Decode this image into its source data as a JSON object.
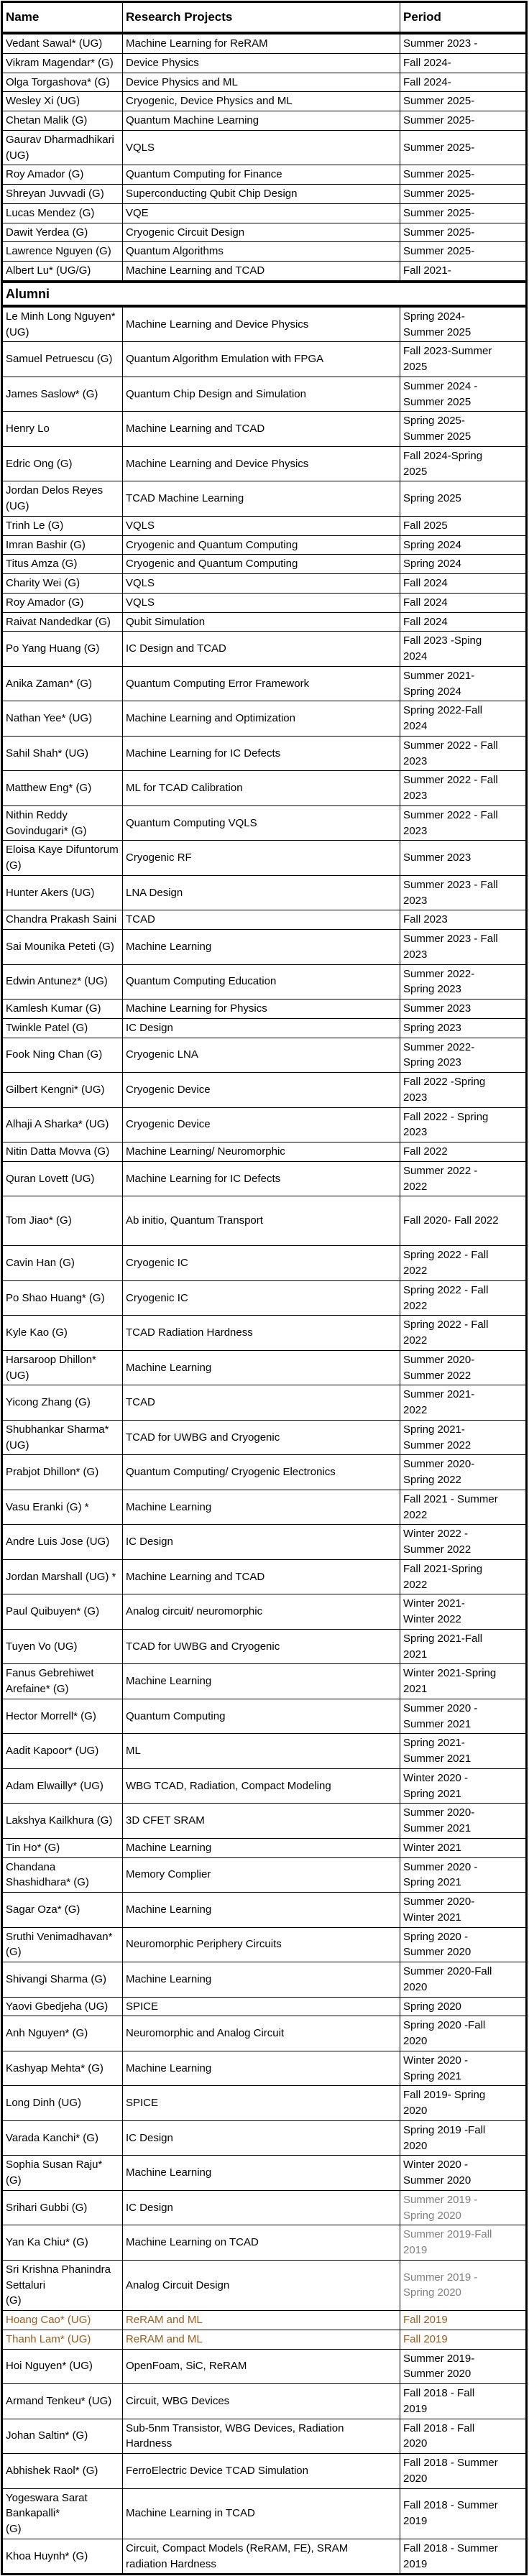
{
  "colors": {
    "text": "#000000",
    "gray_period": "#7f7f7f",
    "brown_row": "#9A5B1E",
    "border": "#000000"
  },
  "table": {
    "columns": [
      "Name",
      "Research Projects",
      "Period"
    ],
    "divider_label": "Alumni",
    "current_members": [
      {
        "name": "Vedant Sawal* (UG)",
        "project": "Machine Learning for ReRAM",
        "period": "Summer 2023 -"
      },
      {
        "name": "Vikram Magendar* (G)",
        "project": "Device Physics",
        "period": "Fall 2024-"
      },
      {
        "name": "Olga Torgashova* (G)",
        "project": "Device Physics and ML",
        "period": "Fall 2024-"
      },
      {
        "name": "Wesley Xi (UG)",
        "project": "Cryogenic, Device Physics and ML",
        "period": "Summer 2025-"
      },
      {
        "name": "Chetan Malik (G)",
        "project": "Quantum Machine Learning",
        "period": "Summer 2025-"
      },
      {
        "name": "Gaurav Dharmadhikari (UG)",
        "project": "VQLS",
        "period": "Summer 2025-"
      },
      {
        "name": "Roy Amador (G)",
        "project": "Quantum Computing for Finance",
        "period": "Summer 2025-"
      },
      {
        "name": "Shreyan Juvvadi (G)",
        "project": "Superconducting Qubit Chip Design",
        "period": "Summer 2025-"
      },
      {
        "name": "Lucas Mendez (G)",
        "project": "VQE",
        "period": "Summer 2025-"
      },
      {
        "name": "Dawit Yerdea (G)",
        "project": "Cryogenic Circuit Design",
        "period": "Summer 2025-"
      },
      {
        "name": "Lawrence Nguyen (G)",
        "project": "Quantum Algorithms",
        "period": "Summer 2025-"
      },
      {
        "name": "Albert Lu* (UG/G)",
        "project": "Machine Learning and TCAD",
        "period": "Fall 2021-"
      }
    ],
    "alumni": [
      {
        "name": "Le Minh Long Nguyen* (UG)",
        "project": "Machine Learning and Device Physics",
        "period": "Spring 2024-\nSummer 2025"
      },
      {
        "name": "Samuel Petruescu (G)",
        "project": "Quantum Algorithm Emulation with FPGA",
        "period": "Fall 2023-Summer\n2025"
      },
      {
        "name": "James Saslow* (G)",
        "project": "Quantum Chip Design and Simulation",
        "period": "Summer 2024 -\nSummer 2025"
      },
      {
        "name": "Henry Lo",
        "project": "Machine Learning and TCAD",
        "period": "Spring 2025-\nSummer 2025"
      },
      {
        "name": "Edric Ong (G)",
        "project": "Machine Learning and Device Physics",
        "period": "Fall 2024-Spring\n2025"
      },
      {
        "name": "Jordan Delos Reyes (UG)",
        "project": "TCAD Machine Learning",
        "period": "Spring 2025"
      },
      {
        "name": "Trinh Le (G)",
        "project": "VQLS",
        "period": "Fall 2025"
      },
      {
        "name": "Imran Bashir (G)",
        "project": "Cryogenic and Quantum Computing",
        "period": "Spring 2024"
      },
      {
        "name": "Titus Amza (G)",
        "project": "Cryogenic and Quantum Computing",
        "period": "Spring 2024"
      },
      {
        "name": "Charity Wei (G)",
        "project": "VQLS",
        "period": "Fall 2024"
      },
      {
        "name": "Roy Amador  (G)",
        "project": "VQLS",
        "period": "Fall 2024"
      },
      {
        "name": "Raivat Nandedkar (G)",
        "project": "Qubit Simulation",
        "period": "Fall 2024"
      },
      {
        "name": "Po Yang Huang (G)",
        "project": "IC Design and TCAD",
        "period": "Fall 2023 -Sping\n2024"
      },
      {
        "name": "Anika Zaman* (G)",
        "project": "Quantum Computing Error Framework",
        "period": "Summer 2021-\nSpring 2024"
      },
      {
        "name": "Nathan Yee* (UG)",
        "project": "Machine Learning and Optimization",
        "period": "Spring 2022-Fall\n2024"
      },
      {
        "name": "Sahil Shah* (UG)",
        "project": "Machine Learning for IC Defects",
        "period": "Summer 2022 - Fall\n2023"
      },
      {
        "name": "Matthew Eng* (G)",
        "project": "ML for TCAD Calibration",
        "period": "Summer 2022 - Fall\n2023"
      },
      {
        "name": "Nithin Reddy Govindugari* (G)",
        "project": "Quantum Computing VQLS",
        "period": "Summer 2022 - Fall\n2023"
      },
      {
        "name": "Eloisa Kaye Difuntorum (G)",
        "project": "Cryogenic RF",
        "period": "Summer 2023"
      },
      {
        "name": "Hunter Akers (UG)",
        "project": "LNA Design",
        "period": "Summer 2023 - Fall\n2023"
      },
      {
        "name": "Chandra Prakash Saini",
        "project": "TCAD",
        "period": "Fall 2023"
      },
      {
        "name": "Sai Mounika Peteti (G)",
        "project": "Machine Learning",
        "period": "Summer 2023 - Fall\n2023"
      },
      {
        "name": "Edwin Antunez* (UG)",
        "project": "Quantum Computing Education",
        "period": "Summer 2022-\nSpring 2023"
      },
      {
        "name": "Kamlesh Kumar (G)",
        "project": "Machine Learning for Physics",
        "period": "Summer 2023"
      },
      {
        "name": "Twinkle Patel (G)",
        "project": "IC Design",
        "period": "Spring 2023"
      },
      {
        "name": "Fook Ning Chan (G)",
        "project": "Cryogenic LNA",
        "period": "Summer 2022-\nSpring 2023"
      },
      {
        "name": "Gilbert Kengni* (UG)",
        "project": "Cryogenic Device",
        "period": "Fall 2022 -Spring\n2023"
      },
      {
        "name": "Alhaji A Sharka* (UG)",
        "project": "Cryogenic Device",
        "period": "Fall 2022 - Spring\n2023"
      },
      {
        "name": "Nitin Datta Movva (G)",
        "project": "Machine Learning/ Neuromorphic",
        "period": "Fall 2022"
      },
      {
        "name": "Quran Lovett (UG)",
        "project": "Machine Learning for IC Defects",
        "period": "Summer 2022 -\n2022"
      },
      {
        "name": "Tom Jiao* (G)",
        "project": "Ab initio, Quantum Transport",
        "period": "Fall 2020- Fall 2022",
        "tall": true
      },
      {
        "name": "Cavin Han (G)",
        "project": "Cryogenic IC",
        "period": "Spring 2022 - Fall\n2022"
      },
      {
        "name": "Po Shao Huang* (G)",
        "project": "Cryogenic IC",
        "period": "Spring 2022 - Fall\n2022"
      },
      {
        "name": "Kyle Kao (G)",
        "project": "TCAD Radiation Hardness",
        "period": "Spring 2022 - Fall\n2022"
      },
      {
        "name": "Harsaroop Dhillon* (UG)",
        "project": "Machine Learning",
        "period": "Summer 2020-\nSummer 2022"
      },
      {
        "name": "Yicong Zhang (G)",
        "project": "TCAD",
        "period": "Summer 2021-\n2022"
      },
      {
        "name": "Shubhankar Sharma* (UG)",
        "project": "TCAD for UWBG and Cryogenic",
        "period": "Spring 2021-\nSummer 2022"
      },
      {
        "name": "Prabjot Dhillon* (G)",
        "project": "Quantum Computing/ Cryogenic Electronics",
        "period": "Summer 2020-\nSpring 2022"
      },
      {
        "name": "Vasu Eranki (G) *",
        "project": "Machine Learning",
        "period": "Fall 2021 - Summer\n2022"
      },
      {
        "name": "Andre Luis Jose (UG)",
        "project": "IC Design",
        "period": "Winter 2022 -\nSummer 2022"
      },
      {
        "name": "Jordan Marshall (UG) *",
        "project": "Machine Learning and TCAD",
        "period": "Fall 2021-Spring\n2022"
      },
      {
        "name": "Paul Quibuyen* (G)",
        "project": "Analog circuit/ neuromorphic",
        "period": "Winter 2021-\nWinter 2022"
      },
      {
        "name": "Tuyen Vo (UG)",
        "project": "TCAD for UWBG and Cryogenic",
        "period": "Spring 2021-Fall\n2021"
      },
      {
        "name": "Fanus Gebrehiwet Arefaine* (G)",
        "project": "Machine Learning",
        "period": "Winter 2021-Spring\n2021"
      },
      {
        "name": "Hector Morrell* (G)",
        "project": "Quantum Computing",
        "period": "Summer 2020 -\nSummer 2021"
      },
      {
        "name": "Aadit Kapoor* (UG)",
        "project": "ML",
        "period": "Spring 2021-\nSummer 2021"
      },
      {
        "name": "Adam Elwailly* (UG)",
        "project": "WBG TCAD, Radiation, Compact Modeling",
        "period": "Winter 2020 -\nSpring 2021"
      },
      {
        "name": "Lakshya Kailkhura (G)",
        "project": "3D CFET SRAM",
        "period": "Summer 2020-\nSummer 2021"
      },
      {
        "name": "Tin Ho* (G)",
        "project": "Machine Learning",
        "period": "Winter 2021"
      },
      {
        "name": "Chandana Shashidhara* (G)",
        "project": "Memory Complier",
        "period": "Summer 2020 -\nSpring 2021"
      },
      {
        "name": "Sagar Oza* (G)",
        "project": "Machine Learning",
        "period": "Summer 2020-\nWinter 2021"
      },
      {
        "name": "Sruthi Venimadhavan* (G)",
        "project": "Neuromorphic Periphery Circuits",
        "period": "Spring 2020 -\nSummer 2020"
      },
      {
        "name": "Shivangi Sharma (G)",
        "project": "Machine Learning",
        "period": "Summer 2020-Fall\n2020"
      },
      {
        "name": "Yaovi Gbedjeha (UG)",
        "project": "SPICE",
        "period": "Spring 2020"
      },
      {
        "name": "Anh Nguyen* (G)",
        "project": "Neuromorphic and Analog Circuit",
        "period": "Spring 2020 -Fall\n2020"
      },
      {
        "name": "Kashyap Mehta* (G)",
        "project": "Machine Learning",
        "period": "Winter 2020 -\nSpring 2021"
      },
      {
        "name": "Long Dinh (UG)",
        "project": "SPICE",
        "period": "Fall 2019- Spring\n2020"
      },
      {
        "name": "Varada Kanchi* (G)",
        "project": "IC Design",
        "period": "Spring 2019 -Fall\n2020"
      },
      {
        "name": "Sophia Susan Raju* (G)",
        "project": "Machine Learning",
        "period": "Winter 2020 -\nSummer 2020"
      },
      {
        "name": "Srihari Gubbi (G)",
        "project": "IC Design",
        "period": "Summer 2019 -\nSpring 2020",
        "period_color": "#7f7f7f"
      },
      {
        "name": "Yan Ka Chiu* (G)",
        "project": "Machine Learning on TCAD",
        "period": "Summer 2019-Fall\n2019",
        "period_color": "#7f7f7f"
      },
      {
        "name": "Sri Krishna Phanindra Settaluri\n(G)",
        "project": "Analog Circuit Design",
        "period": "Summer 2019 -\nSpring 2020",
        "period_color": "#7f7f7f"
      },
      {
        "name": "Hoang Cao* (UG)",
        "project": " ReRAM and ML",
        "period": "Fall 2019",
        "row_color": "#9A5B1E"
      },
      {
        "name": "Thanh Lam* (UG)",
        "project": " ReRAM and ML",
        "period": "Fall 2019",
        "row_color": "#9A5B1E"
      },
      {
        "name": "Hoi Nguyen* (UG)",
        "project": " OpenFoam, SiC, ReRAM",
        "period": "Summer 2019-\nSummer 2020"
      },
      {
        "name": "Armand Tenkeu* (UG)",
        "project": "Circuit, WBG Devices",
        "period": "Fall 2018 - Fall\n2019"
      },
      {
        "name": "Johan Saltin* (G)",
        "project": " Sub-5nm Transistor, WBG Devices, Radiation\nHardness",
        "period": " Fall 2018 - Fall\n2020"
      },
      {
        "name": "Abhishek Raol* (G)",
        "project": "FerroElectric Device TCAD Simulation",
        "period": "Fall 2018 - Summer\n2020"
      },
      {
        "name": "Yogeswara Sarat Bankapalli*\n(G)",
        "project": "Machine Learning in TCAD",
        "period": "Fall 2018 - Summer\n2019"
      },
      {
        "name": "Khoa Huynh* (G)",
        "project": "Circuit, Compact Models (ReRAM, FE), SRAM\nradiation Hardness",
        "period": "Fall 2018 - Summer\n2019"
      }
    ]
  }
}
